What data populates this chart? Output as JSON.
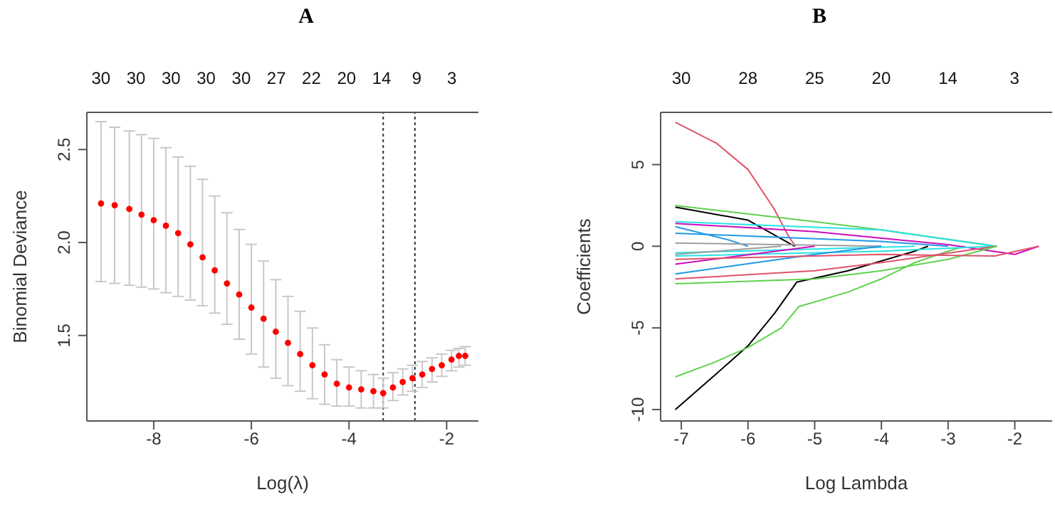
{
  "chart_data": [
    {
      "type": "scatter",
      "title": "A",
      "xlabel": "Log(λ)",
      "ylabel": "Binomial Deviance",
      "marker": "circle",
      "grid": false,
      "legend": false,
      "xlim": [
        -9.37,
        -1.35
      ],
      "xticks": [
        -8,
        -6,
        -4,
        -2
      ],
      "ylim": [
        1.04,
        2.7
      ],
      "yticks": [
        {
          "value": 1.5,
          "label": "1.5"
        },
        {
          "value": 2,
          "label": "2.0"
        },
        {
          "value": 2.5,
          "label": "2.5"
        }
      ],
      "annotations": [
        "30",
        "30",
        "30",
        "30",
        "30",
        "27",
        "22",
        "20",
        "14",
        "9",
        "3"
      ],
      "ref_lines": [
        {
          "axis": "x",
          "value": -3.3,
          "color": "#333333",
          "line_style": "dotted"
        },
        {
          "axis": "x",
          "value": -2.65,
          "color": "#333333",
          "line_style": "dotted"
        }
      ],
      "x": [
        -9.08,
        -8.8,
        -8.5,
        -8.25,
        -8,
        -7.75,
        -7.5,
        -7.25,
        -7,
        -6.75,
        -6.5,
        -6.25,
        -6,
        -5.75,
        -5.5,
        -5.25,
        -5,
        -4.75,
        -4.5,
        -4.25,
        -4,
        -3.75,
        -3.5,
        -3.3,
        -3.1,
        -2.9,
        -2.7,
        -2.5,
        -2.3,
        -2.1,
        -1.9,
        -1.75,
        -1.62
      ],
      "series": [
        {
          "color": "#ff0000",
          "values": [
            2.21,
            2.2,
            2.18,
            2.15,
            2.12,
            2.09,
            2.05,
            1.99,
            1.92,
            1.85,
            1.78,
            1.72,
            1.65,
            1.59,
            1.52,
            1.46,
            1.4,
            1.34,
            1.29,
            1.24,
            1.22,
            1.21,
            1.2,
            1.19,
            1.22,
            1.25,
            1.27,
            1.29,
            1.32,
            1.34,
            1.37,
            1.39,
            1.39
          ],
          "errors": [
            [
              1.79,
              2.65
            ],
            [
              1.78,
              2.62
            ],
            [
              1.77,
              2.6
            ],
            [
              1.76,
              2.58
            ],
            [
              1.75,
              2.56
            ],
            [
              1.73,
              2.51
            ],
            [
              1.71,
              2.46
            ],
            [
              1.69,
              2.41
            ],
            [
              1.66,
              2.34
            ],
            [
              1.62,
              2.25
            ],
            [
              1.56,
              2.16
            ],
            [
              1.48,
              2.07
            ],
            [
              1.4,
              1.99
            ],
            [
              1.33,
              1.9
            ],
            [
              1.27,
              1.8
            ],
            [
              1.23,
              1.71
            ],
            [
              1.2,
              1.63
            ],
            [
              1.16,
              1.54
            ],
            [
              1.13,
              1.45
            ],
            [
              1.12,
              1.37
            ],
            [
              1.12,
              1.33
            ],
            [
              1.11,
              1.31
            ],
            [
              1.11,
              1.29
            ],
            [
              1.11,
              1.27
            ],
            [
              1.15,
              1.3
            ],
            [
              1.18,
              1.32
            ],
            [
              1.2,
              1.34
            ],
            [
              1.22,
              1.36
            ],
            [
              1.25,
              1.38
            ],
            [
              1.28,
              1.4
            ],
            [
              1.31,
              1.42
            ],
            [
              1.33,
              1.43
            ],
            [
              1.34,
              1.44
            ]
          ]
        }
      ]
    },
    {
      "type": "line",
      "title": "B",
      "xlabel": "Log Lambda",
      "ylabel": "Coefficients",
      "marker": "none",
      "line_style": "solid",
      "grid": false,
      "legend": false,
      "xlim": [
        -7.31,
        -1.44
      ],
      "xticks": [
        -7,
        -6,
        -5,
        -4,
        -3,
        -2
      ],
      "ylim": [
        -10.7,
        8.2
      ],
      "yticks": [
        -10,
        -5,
        0,
        5
      ],
      "annotations": [
        "30",
        "28",
        "25",
        "20",
        "14",
        "3"
      ],
      "series": [
        {
          "color": "#df536b",
          "x": [
            -7.09,
            -6.47,
            -6,
            -5.61,
            -5.39,
            -5.29
          ],
          "values": [
            7.6,
            6.3,
            4.7,
            2.3,
            0.6,
            0
          ]
        },
        {
          "color": "#000000",
          "x": [
            -7.09,
            -6.5,
            -6,
            -5.6,
            -5.27,
            -4.5,
            -4,
            -3.5,
            -3.3
          ],
          "values": [
            -10,
            -7.9,
            -6.1,
            -4.1,
            -2.2,
            -1.5,
            -0.9,
            -0.3,
            0
          ]
        },
        {
          "color": "#61d04f",
          "x": [
            -7.09,
            -6.5,
            -6,
            -5.5,
            -5.24,
            -4.5,
            -4,
            -3.5,
            -3,
            -2.75
          ],
          "values": [
            -8,
            -7.1,
            -6.2,
            -5,
            -3.7,
            -2.8,
            -2,
            -1,
            -0.3,
            0
          ]
        },
        {
          "color": "#61d04f",
          "x": [
            -7.09,
            -5,
            -4,
            -2.27
          ],
          "values": [
            2.5,
            1.5,
            1,
            0
          ]
        },
        {
          "color": "#000000",
          "x": [
            -7.09,
            -6,
            -5.3
          ],
          "values": [
            2.4,
            1.6,
            0
          ]
        },
        {
          "color": "#28e2e5",
          "x": [
            -7.09,
            -4,
            -2.3
          ],
          "values": [
            1.5,
            1,
            0
          ]
        },
        {
          "color": "#cd0bbc",
          "x": [
            -7.09,
            -5,
            -3,
            -2,
            -1.64
          ],
          "values": [
            1.4,
            0.9,
            0.1,
            -0.5,
            0
          ]
        },
        {
          "color": "#2297e6",
          "x": [
            -7.09,
            -4,
            -3
          ],
          "values": [
            0.8,
            0.3,
            0
          ]
        },
        {
          "color": "#2297e6",
          "x": [
            -7.09,
            -6.3,
            -6
          ],
          "values": [
            1.2,
            0.4,
            0
          ]
        },
        {
          "color": "#9e9e9e",
          "x": [
            -7.09,
            -4
          ],
          "values": [
            0.2,
            0
          ]
        },
        {
          "color": "#28e2e5",
          "x": [
            -7.09,
            -3.5
          ],
          "values": [
            -0.4,
            0
          ]
        },
        {
          "color": "#28e2e5",
          "x": [
            -7.09,
            -4,
            -2.3
          ],
          "values": [
            -0.6,
            -0.3,
            0
          ]
        },
        {
          "color": "#cd0bbc",
          "x": [
            -7.09,
            -5
          ],
          "values": [
            -1.1,
            0
          ]
        },
        {
          "color": "#2297e6",
          "x": [
            -7.09,
            -5,
            -4
          ],
          "values": [
            -1.7,
            -0.5,
            0
          ]
        },
        {
          "color": "#df536b",
          "x": [
            -7.09,
            -5,
            -4,
            -2.27
          ],
          "values": [
            -2,
            -1.5,
            -1,
            0
          ]
        },
        {
          "color": "#61d04f",
          "x": [
            -7.09,
            -5,
            -4,
            -3,
            -2.27
          ],
          "values": [
            -2.3,
            -2,
            -1.5,
            -0.8,
            0
          ]
        },
        {
          "color": "#df536b",
          "x": [
            -7.09,
            -4,
            -2.3,
            -1.64
          ],
          "values": [
            -0.8,
            -0.5,
            -0.6,
            0
          ]
        },
        {
          "color": "#9e9e9e",
          "x": [
            -7.09,
            -5.5
          ],
          "values": [
            -0.5,
            0
          ]
        }
      ]
    }
  ]
}
